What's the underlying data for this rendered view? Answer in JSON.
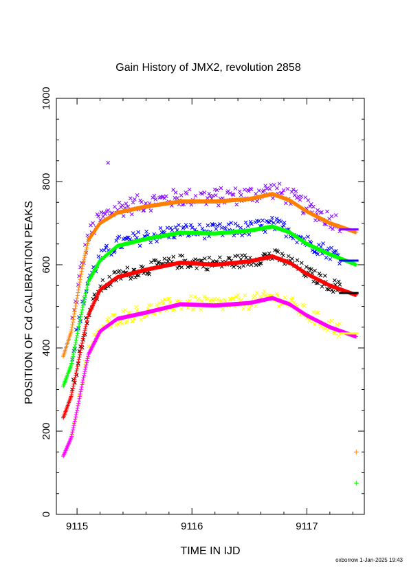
{
  "chart_data": {
    "type": "scatter",
    "title": "Gain History of JMX2, revolution 2858",
    "xlabel": "TIME IN IJD",
    "ylabel": "POSITION OF Cd CALIBRATION PEAKS",
    "xlim": [
      9114.82,
      9117.5
    ],
    "ylim": [
      0,
      1000
    ],
    "x_ticks": [
      9115,
      9116,
      9117
    ],
    "x_tick_labels": [
      "9115",
      "9116",
      "9117"
    ],
    "y_ticks": [
      0,
      200,
      400,
      600,
      800,
      1000
    ],
    "y_tick_labels": [
      "0",
      "200",
      "400",
      "600",
      "800",
      "1000"
    ],
    "footer": "oxborrow  1-Jan-2025 19:43",
    "series": [
      {
        "color": "#ff8000",
        "smooth": [
          [
            9114.88,
            380
          ],
          [
            9114.95,
            440
          ],
          [
            9115.0,
            520
          ],
          [
            9115.05,
            600
          ],
          [
            9115.1,
            660
          ],
          [
            9115.2,
            700
          ],
          [
            9115.35,
            725
          ],
          [
            9115.6,
            740
          ],
          [
            9115.9,
            752
          ],
          [
            9116.2,
            752
          ],
          [
            9116.5,
            758
          ],
          [
            9116.7,
            770
          ],
          [
            9116.85,
            755
          ],
          [
            9117.0,
            728
          ],
          [
            9117.2,
            700
          ],
          [
            9117.43,
            678
          ]
        ],
        "raw_color": "#8000ff",
        "raw_offset": 10,
        "raw_scatter": 22,
        "outliers": [
          [
            9115.27,
            845
          ]
        ],
        "bar": [
          9117.28,
          9117.45,
          685
        ],
        "extra": [
          [
            9117.43,
            150
          ]
        ]
      },
      {
        "color": "#00ff00",
        "smooth": [
          [
            9114.88,
            308
          ],
          [
            9114.95,
            360
          ],
          [
            9115.0,
            430
          ],
          [
            9115.05,
            500
          ],
          [
            9115.1,
            560
          ],
          [
            9115.2,
            610
          ],
          [
            9115.35,
            645
          ],
          [
            9115.6,
            662
          ],
          [
            9115.9,
            677
          ],
          [
            9116.2,
            675
          ],
          [
            9116.5,
            682
          ],
          [
            9116.7,
            692
          ],
          [
            9116.85,
            678
          ],
          [
            9117.0,
            650
          ],
          [
            9117.2,
            625
          ],
          [
            9117.43,
            600
          ]
        ],
        "raw_color": "#0000ff",
        "raw_offset": 5,
        "raw_scatter": 18,
        "outliers": [],
        "bar": [
          9117.28,
          9117.45,
          610
        ],
        "extra": [
          [
            9117.43,
            75
          ]
        ]
      },
      {
        "color": "#ff0000",
        "smooth": [
          [
            9114.88,
            232
          ],
          [
            9114.95,
            285
          ],
          [
            9115.0,
            350
          ],
          [
            9115.05,
            420
          ],
          [
            9115.1,
            480
          ],
          [
            9115.2,
            540
          ],
          [
            9115.35,
            570
          ],
          [
            9115.6,
            588
          ],
          [
            9115.9,
            605
          ],
          [
            9116.2,
            600
          ],
          [
            9116.5,
            608
          ],
          [
            9116.7,
            620
          ],
          [
            9116.85,
            605
          ],
          [
            9117.0,
            578
          ],
          [
            9117.2,
            550
          ],
          [
            9117.43,
            527
          ]
        ],
        "raw_color": "#000000",
        "raw_offset": 3,
        "raw_scatter": 16,
        "outliers": [],
        "bar": [
          9117.28,
          9117.45,
          532
        ],
        "extra": []
      },
      {
        "color": "#ff00ff",
        "smooth": [
          [
            9114.88,
            140
          ],
          [
            9114.95,
            185
          ],
          [
            9115.0,
            250
          ],
          [
            9115.05,
            320
          ],
          [
            9115.1,
            385
          ],
          [
            9115.2,
            440
          ],
          [
            9115.35,
            470
          ],
          [
            9115.6,
            485
          ],
          [
            9115.9,
            505
          ],
          [
            9116.2,
            502
          ],
          [
            9116.5,
            508
          ],
          [
            9116.7,
            520
          ],
          [
            9116.85,
            505
          ],
          [
            9117.0,
            478
          ],
          [
            9117.2,
            450
          ],
          [
            9117.43,
            427
          ]
        ],
        "raw_color": "#ffff00",
        "raw_offset": 3,
        "raw_scatter": 18,
        "outliers": [],
        "bar": [
          9117.28,
          9117.45,
          435
        ],
        "extra": []
      }
    ]
  }
}
